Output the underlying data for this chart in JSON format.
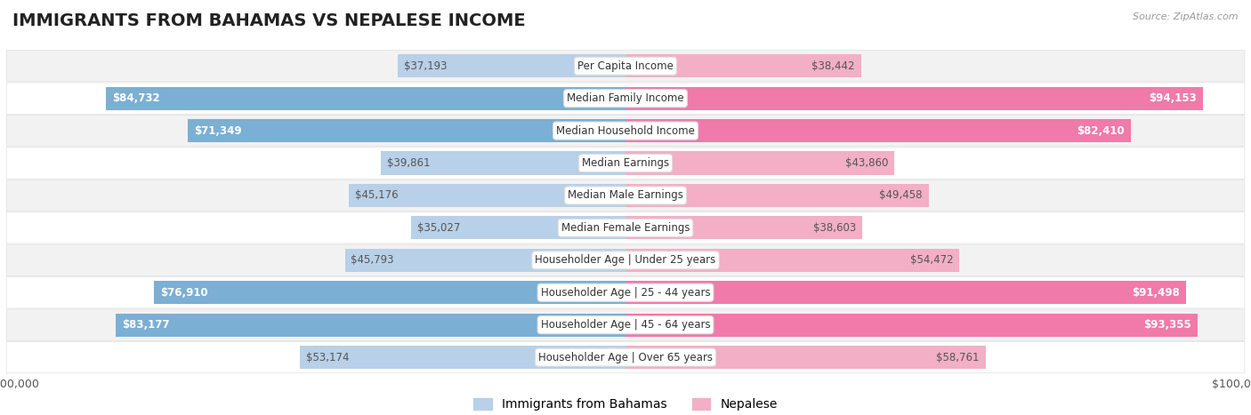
{
  "title": "IMMIGRANTS FROM BAHAMAS VS NEPALESE INCOME",
  "source": "Source: ZipAtlas.com",
  "categories": [
    "Per Capita Income",
    "Median Family Income",
    "Median Household Income",
    "Median Earnings",
    "Median Male Earnings",
    "Median Female Earnings",
    "Householder Age | Under 25 years",
    "Householder Age | 25 - 44 years",
    "Householder Age | 45 - 64 years",
    "Householder Age | Over 65 years"
  ],
  "bahamas_values": [
    37193,
    84732,
    71349,
    39861,
    45176,
    35027,
    45793,
    76910,
    83177,
    53174
  ],
  "nepalese_values": [
    38442,
    94153,
    82410,
    43860,
    49458,
    38603,
    54472,
    91498,
    93355,
    58761
  ],
  "bahamas_labels": [
    "$37,193",
    "$84,732",
    "$71,349",
    "$39,861",
    "$45,176",
    "$35,027",
    "$45,793",
    "$76,910",
    "$83,177",
    "$53,174"
  ],
  "nepalese_labels": [
    "$38,442",
    "$94,153",
    "$82,410",
    "$43,860",
    "$49,458",
    "$38,603",
    "$54,472",
    "$91,498",
    "$93,355",
    "$58,761"
  ],
  "bahamas_color_light": "#b8d0e8",
  "bahamas_color_dark": "#7bafd4",
  "nepalese_color_light": "#f2afc5",
  "nepalese_color_dark": "#f07aaa",
  "bahamas_label_inside": [
    false,
    true,
    true,
    false,
    false,
    false,
    false,
    true,
    true,
    false
  ],
  "nepalese_label_inside": [
    false,
    true,
    true,
    false,
    false,
    false,
    false,
    true,
    true,
    false
  ],
  "max_value": 100000,
  "background_color": "#ffffff",
  "row_bg_even": "#f2f2f2",
  "row_bg_odd": "#ffffff",
  "title_fontsize": 14,
  "label_fontsize": 9,
  "legend_fontsize": 10,
  "axis_label_fontsize": 9,
  "threshold_dark": 60000
}
